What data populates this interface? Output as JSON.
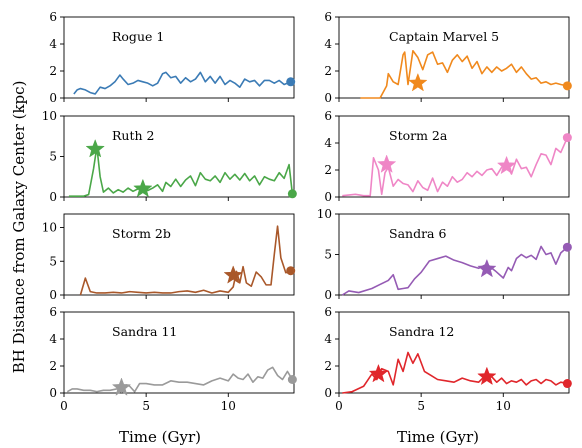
{
  "figure": {
    "ylabel": "BH Distance from Galaxy Center (kpc)",
    "xlabel": "Time (Gyr)"
  },
  "chart_data": [
    {
      "type": "line",
      "title": "Rogue 1",
      "color": "#3b7bb5",
      "xlim": [
        0,
        14
      ],
      "ylim": [
        0,
        6
      ],
      "yticks": [
        0,
        2,
        4,
        6
      ],
      "xticks": [
        0,
        5,
        10
      ],
      "x": [
        0.6,
        0.8,
        1.0,
        1.3,
        1.6,
        1.9,
        2.2,
        2.5,
        2.8,
        3.1,
        3.4,
        3.6,
        3.9,
        4.2,
        4.5,
        4.8,
        5.1,
        5.4,
        5.7,
        6.0,
        6.2,
        6.5,
        6.8,
        7.1,
        7.4,
        7.7,
        8.0,
        8.3,
        8.6,
        8.9,
        9.2,
        9.5,
        9.8,
        10.1,
        10.4,
        10.7,
        11.0,
        11.3,
        11.6,
        11.9,
        12.2,
        12.5,
        12.8,
        13.1,
        13.4,
        13.8
      ],
      "y": [
        0.3,
        0.6,
        0.7,
        0.6,
        0.4,
        0.3,
        0.8,
        0.7,
        0.9,
        1.2,
        1.7,
        1.4,
        1.0,
        1.1,
        1.3,
        1.2,
        1.1,
        0.9,
        1.1,
        1.8,
        1.9,
        1.5,
        1.6,
        1.1,
        1.5,
        1.2,
        1.4,
        1.9,
        1.2,
        1.6,
        1.1,
        1.6,
        1.0,
        1.3,
        1.1,
        0.8,
        1.4,
        1.2,
        1.3,
        0.9,
        1.3,
        1.3,
        1.1,
        1.3,
        1.0,
        1.2
      ],
      "markers": [
        {
          "shape": "circle",
          "x": 13.8,
          "y": 1.2
        }
      ]
    },
    {
      "type": "line",
      "title": "Captain Marvel 5",
      "color": "#f0891d",
      "xlim": [
        0,
        14
      ],
      "ylim": [
        0,
        6
      ],
      "yticks": [
        0,
        2,
        4,
        6
      ],
      "xticks": [
        0,
        5,
        10
      ],
      "x": [
        1.3,
        2.5,
        2.9,
        3.0,
        3.3,
        3.6,
        3.9,
        4.0,
        4.2,
        4.5,
        4.8,
        5.1,
        5.4,
        5.7,
        6.0,
        6.3,
        6.6,
        6.9,
        7.2,
        7.5,
        7.8,
        8.1,
        8.4,
        8.7,
        9.0,
        9.3,
        9.6,
        9.9,
        10.2,
        10.5,
        10.8,
        11.1,
        11.4,
        11.7,
        12.0,
        12.3,
        12.6,
        12.9,
        13.2,
        13.5,
        13.9
      ],
      "y": [
        0.0,
        0.0,
        0.9,
        1.8,
        1.2,
        1.0,
        3.2,
        3.4,
        1.0,
        3.5,
        3.0,
        2.1,
        3.2,
        3.4,
        2.5,
        2.6,
        1.9,
        2.8,
        3.2,
        2.7,
        3.1,
        2.2,
        2.7,
        1.8,
        2.3,
        1.9,
        2.3,
        2.0,
        2.2,
        2.5,
        1.9,
        2.3,
        1.8,
        1.4,
        1.5,
        1.1,
        1.2,
        1.0,
        1.1,
        1.0,
        0.9
      ],
      "markers": [
        {
          "shape": "star",
          "x": 4.8,
          "y": 1.1
        },
        {
          "shape": "circle",
          "x": 13.9,
          "y": 0.9
        }
      ]
    },
    {
      "type": "line",
      "title": "Ruth 2",
      "color": "#4aa748",
      "xlim": [
        0,
        14
      ],
      "ylim": [
        0,
        10
      ],
      "yticks": [
        0,
        5,
        10
      ],
      "xticks": [
        0,
        5,
        10
      ],
      "x": [
        0.3,
        1.2,
        1.5,
        1.8,
        2.0,
        2.2,
        2.4,
        2.7,
        3.0,
        3.3,
        3.6,
        3.9,
        4.2,
        4.5,
        4.8,
        5.1,
        5.4,
        5.7,
        6.0,
        6.2,
        6.5,
        6.8,
        7.1,
        7.4,
        7.7,
        8.0,
        8.3,
        8.6,
        8.9,
        9.2,
        9.5,
        9.8,
        10.1,
        10.4,
        10.7,
        11.0,
        11.3,
        11.6,
        11.9,
        12.2,
        12.5,
        12.8,
        13.1,
        13.4,
        13.7,
        13.9
      ],
      "y": [
        0.1,
        0.1,
        0.3,
        3.5,
        6.2,
        2.5,
        0.6,
        1.1,
        0.5,
        0.9,
        0.6,
        1.1,
        0.7,
        1.0,
        1.3,
        0.8,
        1.1,
        1.5,
        0.7,
        1.8,
        1.3,
        2.2,
        1.3,
        2.1,
        2.6,
        1.4,
        3.0,
        2.2,
        2.0,
        2.6,
        1.8,
        3.0,
        2.2,
        2.8,
        2.1,
        2.9,
        2.0,
        2.6,
        1.5,
        2.5,
        2.2,
        2.0,
        3.0,
        2.3,
        4.0,
        0.4
      ],
      "markers": [
        {
          "shape": "star",
          "x": 1.9,
          "y": 5.9
        },
        {
          "shape": "star",
          "x": 4.8,
          "y": 1.0
        },
        {
          "shape": "circle",
          "x": 13.9,
          "y": 0.4
        }
      ]
    },
    {
      "type": "line",
      "title": "Storm 2a",
      "color": "#ef86c6",
      "xlim": [
        0,
        14
      ],
      "ylim": [
        0,
        6
      ],
      "yticks": [
        0,
        2,
        4,
        6
      ],
      "xticks": [
        0,
        5,
        10
      ],
      "x": [
        0.2,
        1.0,
        1.5,
        1.9,
        2.1,
        2.4,
        2.6,
        2.8,
        3.0,
        3.3,
        3.6,
        3.9,
        4.2,
        4.5,
        4.8,
        5.1,
        5.4,
        5.7,
        6.0,
        6.3,
        6.6,
        6.9,
        7.2,
        7.5,
        7.8,
        8.1,
        8.4,
        8.7,
        9.0,
        9.3,
        9.6,
        9.9,
        10.2,
        10.5,
        10.8,
        11.1,
        11.4,
        11.7,
        12.0,
        12.3,
        12.6,
        12.9,
        13.2,
        13.5,
        13.9
      ],
      "y": [
        0.1,
        0.2,
        0.1,
        0.1,
        2.9,
        2.0,
        0.2,
        1.8,
        2.2,
        0.8,
        1.3,
        1.0,
        0.9,
        0.4,
        1.2,
        0.7,
        0.5,
        1.4,
        0.4,
        1.1,
        0.8,
        1.5,
        1.1,
        1.3,
        1.8,
        1.5,
        1.9,
        1.6,
        2.0,
        2.1,
        1.6,
        2.2,
        2.4,
        1.7,
        2.8,
        2.1,
        2.2,
        1.5,
        2.4,
        3.2,
        3.1,
        2.4,
        3.6,
        3.3,
        4.4
      ],
      "markers": [
        {
          "shape": "star",
          "x": 2.9,
          "y": 2.4
        },
        {
          "shape": "star",
          "x": 10.2,
          "y": 2.3
        },
        {
          "shape": "circle",
          "x": 13.9,
          "y": 4.4
        }
      ]
    },
    {
      "type": "line",
      "title": "Storm 2b",
      "color": "#a9582a",
      "xlim": [
        0,
        14
      ],
      "ylim": [
        0,
        12
      ],
      "yticks": [
        0,
        5,
        10
      ],
      "xticks": [
        0,
        5,
        10
      ],
      "x": [
        1.0,
        1.3,
        1.6,
        2.0,
        2.5,
        3.0,
        3.5,
        4.0,
        4.5,
        5.0,
        5.5,
        6.0,
        6.5,
        7.0,
        7.5,
        8.0,
        8.5,
        9.0,
        9.5,
        10.0,
        10.3,
        10.5,
        10.7,
        10.9,
        11.1,
        11.4,
        11.7,
        12.0,
        12.3,
        12.6,
        12.8,
        13.0,
        13.2,
        13.5,
        13.8
      ],
      "y": [
        0.0,
        2.5,
        0.5,
        0.3,
        0.3,
        0.4,
        0.3,
        0.5,
        0.4,
        0.3,
        0.4,
        0.3,
        0.3,
        0.5,
        0.6,
        0.4,
        0.7,
        0.3,
        0.6,
        0.4,
        1.2,
        3.5,
        1.8,
        4.2,
        1.8,
        1.3,
        3.4,
        2.7,
        1.5,
        1.5,
        6.0,
        10.2,
        5.5,
        3.3,
        3.6
      ],
      "markers": [
        {
          "shape": "star",
          "x": 10.3,
          "y": 2.9
        },
        {
          "shape": "circle",
          "x": 13.8,
          "y": 3.6
        }
      ]
    },
    {
      "type": "line",
      "title": "Sandra 6",
      "color": "#955bb4",
      "xlim": [
        0,
        14
      ],
      "ylim": [
        0,
        10
      ],
      "yticks": [
        0,
        5,
        10
      ],
      "xticks": [
        0,
        5,
        10
      ],
      "x": [
        0.2,
        0.6,
        1.2,
        2.0,
        2.5,
        3.0,
        3.3,
        3.6,
        3.9,
        4.2,
        4.6,
        5.0,
        5.5,
        6.0,
        6.5,
        7.0,
        7.5,
        8.0,
        8.5,
        9.0,
        9.5,
        10.0,
        10.3,
        10.5,
        10.8,
        11.1,
        11.4,
        11.7,
        12.0,
        12.3,
        12.6,
        12.9,
        13.2,
        13.5,
        13.9
      ],
      "y": [
        0.0,
        0.5,
        0.3,
        0.8,
        1.3,
        1.8,
        2.5,
        0.7,
        0.8,
        0.9,
        2.0,
        2.8,
        4.2,
        4.5,
        4.8,
        4.3,
        4.0,
        3.6,
        3.3,
        3.8,
        3.0,
        2.1,
        3.4,
        3.0,
        4.5,
        5.0,
        4.6,
        4.9,
        4.4,
        6.0,
        5.0,
        5.2,
        3.8,
        5.2,
        5.9
      ],
      "markers": [
        {
          "shape": "star",
          "x": 9.0,
          "y": 3.2
        },
        {
          "shape": "circle",
          "x": 13.9,
          "y": 5.9
        }
      ]
    },
    {
      "type": "line",
      "title": "Sandra 11",
      "color": "#9a9a9a",
      "xlim": [
        0,
        14
      ],
      "ylim": [
        0,
        6
      ],
      "yticks": [
        0,
        2,
        4,
        6
      ],
      "xticks": [
        0,
        5,
        10
      ],
      "x": [
        0.2,
        0.5,
        0.8,
        1.2,
        1.6,
        2.0,
        2.4,
        2.8,
        3.2,
        3.5,
        3.8,
        4.0,
        4.3,
        4.6,
        5.0,
        5.5,
        6.0,
        6.5,
        7.0,
        7.5,
        8.0,
        8.5,
        9.0,
        9.5,
        10.0,
        10.3,
        10.6,
        10.9,
        11.2,
        11.5,
        11.8,
        12.1,
        12.4,
        12.7,
        13.0,
        13.3,
        13.6,
        13.9
      ],
      "y": [
        0.1,
        0.3,
        0.3,
        0.2,
        0.2,
        0.1,
        0.2,
        0.2,
        0.3,
        0.3,
        0.6,
        0.5,
        0.1,
        0.7,
        0.7,
        0.6,
        0.6,
        0.9,
        0.8,
        0.8,
        0.7,
        0.6,
        0.9,
        1.1,
        0.9,
        1.4,
        1.1,
        1.0,
        1.4,
        0.8,
        1.2,
        1.1,
        1.7,
        1.9,
        1.3,
        1.0,
        1.6,
        1.0
      ],
      "markers": [
        {
          "shape": "star",
          "x": 3.5,
          "y": 0.4
        },
        {
          "shape": "circle",
          "x": 13.9,
          "y": 1.0
        }
      ]
    },
    {
      "type": "line",
      "title": "Sandra 12",
      "color": "#e0262b",
      "xlim": [
        0,
        14
      ],
      "ylim": [
        0,
        6
      ],
      "yticks": [
        0,
        2,
        4,
        6
      ],
      "xticks": [
        0,
        5,
        10
      ],
      "x": [
        0.2,
        0.8,
        1.5,
        2.0,
        2.3,
        2.6,
        3.0,
        3.3,
        3.6,
        3.9,
        4.2,
        4.5,
        4.8,
        5.2,
        5.6,
        6.0,
        6.5,
        7.0,
        7.5,
        8.0,
        8.5,
        9.0,
        9.3,
        9.6,
        9.9,
        10.2,
        10.5,
        10.8,
        11.1,
        11.4,
        11.7,
        12.0,
        12.3,
        12.6,
        12.9,
        13.2,
        13.5,
        13.9
      ],
      "y": [
        0.0,
        0.1,
        0.5,
        1.4,
        1.0,
        1.8,
        1.6,
        0.6,
        2.5,
        1.6,
        3.0,
        2.2,
        2.9,
        1.6,
        1.3,
        1.0,
        0.9,
        0.8,
        1.1,
        0.9,
        0.8,
        1.4,
        1.2,
        0.8,
        1.1,
        0.7,
        0.9,
        0.8,
        1.0,
        0.6,
        0.9,
        1.0,
        0.7,
        1.0,
        0.9,
        0.6,
        0.8,
        0.7
      ],
      "markers": [
        {
          "shape": "star",
          "x": 2.4,
          "y": 1.4
        },
        {
          "shape": "star",
          "x": 9.0,
          "y": 1.2
        },
        {
          "shape": "circle",
          "x": 13.9,
          "y": 0.7
        }
      ]
    }
  ]
}
